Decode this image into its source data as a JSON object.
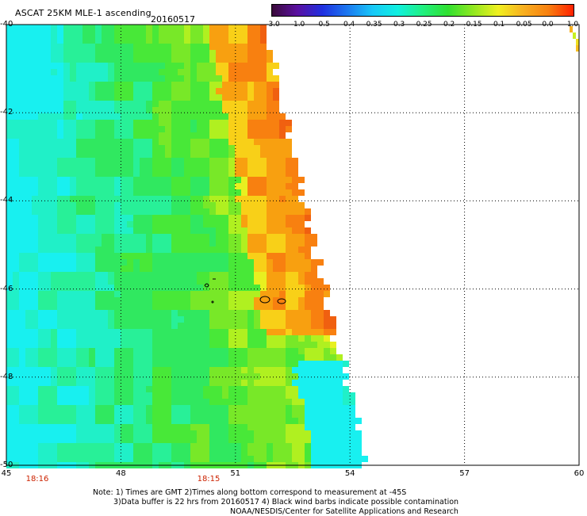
{
  "header": {
    "title": "ASCAT 25KM MLE-1 ascending",
    "date": "20160517"
  },
  "colorbar": {
    "labels": [
      "-3.0",
      "-1.0",
      "-0.5",
      "-0.4",
      "-0.35",
      "-0.3",
      "-0.25",
      "-0.2",
      "-0.15",
      "-0.1",
      "-0.05",
      "0.0",
      "1.0"
    ],
    "colors": [
      "#3a0a3a",
      "#5a10a0",
      "#2030e0",
      "#1c78f0",
      "#18c8f8",
      "#10f0e0",
      "#20f080",
      "#30e030",
      "#90e820",
      "#f0f020",
      "#f8b020",
      "#f88010",
      "#ff2000"
    ]
  },
  "map": {
    "lon_ticks": [
      "45",
      "48",
      "51",
      "54",
      "57",
      "60"
    ],
    "lat_ticks": [
      "-40",
      "-42",
      "-44",
      "-46",
      "-48",
      "-50"
    ],
    "lon_range": [
      45,
      60
    ],
    "lat_range": [
      -40,
      -50
    ],
    "time_labels": [
      "18:16",
      "18:15"
    ],
    "grid": true
  },
  "notes": {
    "line1": "Note: 1) Times are GMT 2)Times along bottom correspond to measurement at -45S",
    "line2": "3)Data buffer is 22 hrs from 20160517 4) Black wind barbs indicate possible contamination",
    "line3": "NOAA/NESDIS/Center for Satellite Applications and Research"
  }
}
